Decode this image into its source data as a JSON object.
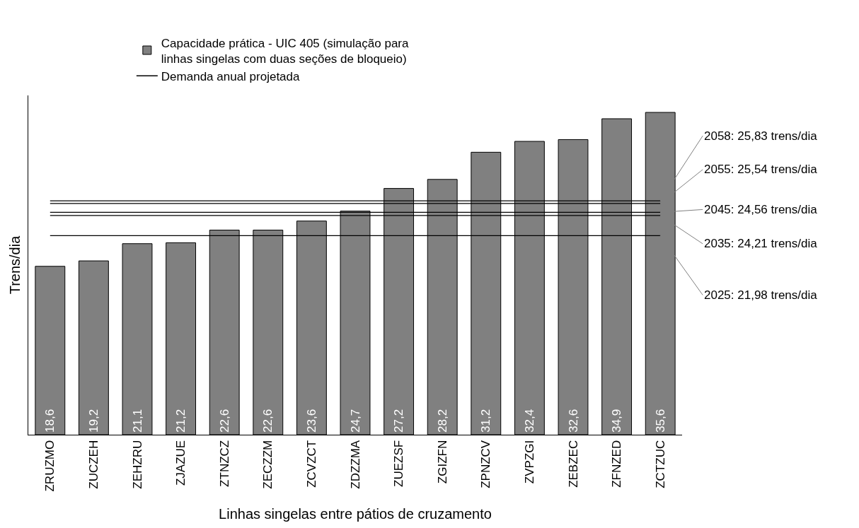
{
  "chart_data": {
    "type": "bar",
    "xlabel": "Linhas singelas entre pátios de cruzamento",
    "ylabel": "Trens/dia",
    "categories": [
      "ZRUZMO",
      "ZUCZEH",
      "ZEHZRU",
      "ZJAZUE",
      "ZTNZCZ",
      "ZECZZM",
      "ZCVZCT",
      "ZDZZMA",
      "ZUEZSF",
      "ZGIZFN",
      "ZPNZCV",
      "ZVPZGI",
      "ZEBZEC",
      "ZFNZED",
      "ZCTZUC"
    ],
    "series": [
      {
        "name": "Capacidade prática - UIC 405 (simulação para linhas singelas com duas seções de bloqueio)",
        "color": "#808080",
        "values": [
          18.6,
          19.2,
          21.1,
          21.2,
          22.6,
          22.6,
          23.6,
          24.7,
          27.2,
          28.2,
          31.2,
          32.4,
          32.6,
          34.9,
          35.6
        ],
        "value_labels": [
          "18,6",
          "19,2",
          "21,1",
          "21,2",
          "22,6",
          "22,6",
          "23,6",
          "24,7",
          "27,2",
          "28,2",
          "31,2",
          "32,4",
          "32,6",
          "34,9",
          "35,6"
        ]
      },
      {
        "name": "Demanda anual projetada",
        "type": "line",
        "color": "#000000",
        "values": [
          null,
          null,
          null,
          null,
          null,
          null,
          null,
          null,
          null,
          null,
          null,
          null,
          null,
          null,
          null
        ]
      }
    ],
    "ref_lines": [
      {
        "axis": "y",
        "value": 25.83,
        "label": "2058: 25,83 trens/dia",
        "color": "#000000"
      },
      {
        "axis": "y",
        "value": 25.54,
        "label": "2055: 25,54 trens/dia",
        "color": "#000000"
      },
      {
        "axis": "y",
        "value": 24.56,
        "label": "2045: 24,56 trens/dia",
        "color": "#000000"
      },
      {
        "axis": "y",
        "value": 24.21,
        "label": "2035: 24,21 trens/dia",
        "color": "#000000"
      },
      {
        "axis": "y",
        "value": 21.98,
        "label": "2025: 21,98 trens/dia",
        "color": "#000000"
      }
    ],
    "tick_labels": "x",
    "legend": "top"
  }
}
